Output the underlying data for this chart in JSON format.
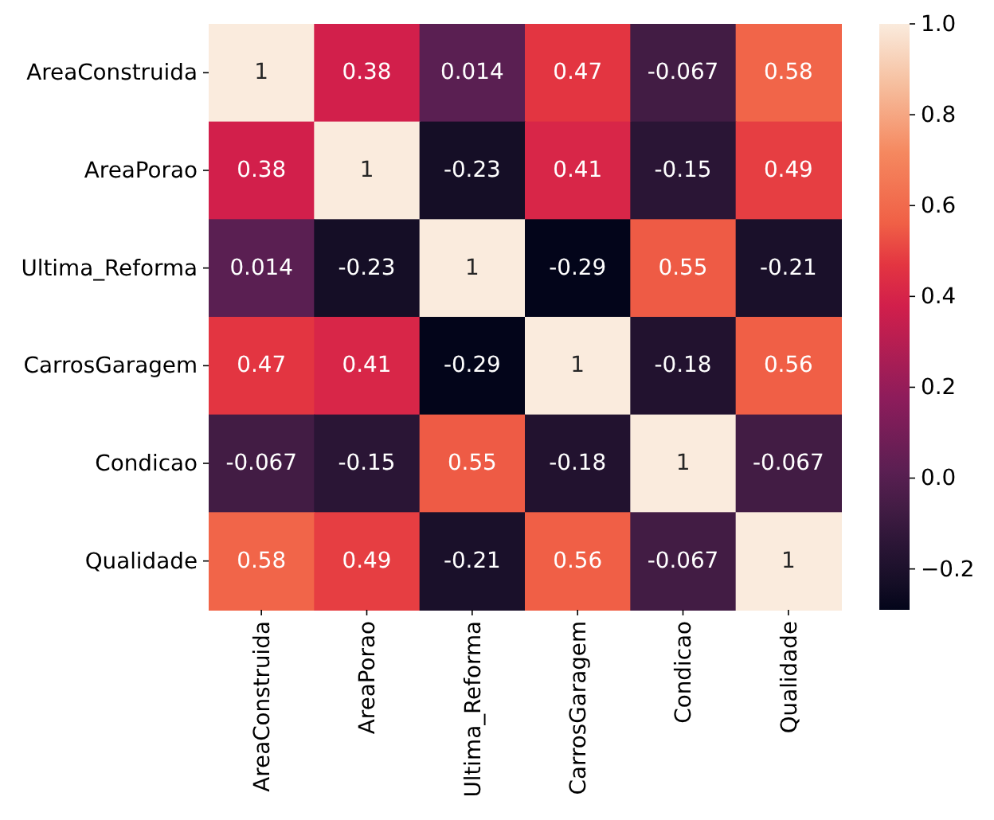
{
  "chart_data": {
    "type": "heatmap",
    "categories": [
      "AreaConstruida",
      "AreaPorao",
      "Ultima_Reforma",
      "CarrosGaragem",
      "Condicao",
      "Qualidade"
    ],
    "y_categories": [
      "AreaConstruida",
      "AreaPorao",
      "Ultima_Reforma",
      "CarrosGaragem",
      "Condicao",
      "Qualidade"
    ],
    "cells": [
      [
        1,
        0.38,
        0.014,
        0.47,
        -0.067,
        0.58
      ],
      [
        0.38,
        1,
        -0.23,
        0.41,
        -0.15,
        0.49
      ],
      [
        0.014,
        -0.23,
        1,
        -0.29,
        0.55,
        -0.21
      ],
      [
        0.47,
        0.41,
        -0.29,
        1,
        -0.18,
        0.56
      ],
      [
        -0.067,
        -0.15,
        0.55,
        -0.18,
        1,
        -0.067
      ],
      [
        0.58,
        0.49,
        -0.21,
        0.56,
        -0.067,
        1
      ]
    ],
    "clim": [
      -0.29,
      1
    ],
    "cticks": [
      {
        "value": -0.2,
        "label": "−0.2"
      },
      {
        "value": 0,
        "label": "0.0"
      },
      {
        "value": 0.2,
        "label": "0.2"
      },
      {
        "value": 0.4,
        "label": "0.4"
      },
      {
        "value": 0.6,
        "label": "0.6"
      },
      {
        "value": 0.8,
        "label": "0.8"
      },
      {
        "value": 1,
        "label": "1.0"
      }
    ],
    "data_labels": true
  }
}
